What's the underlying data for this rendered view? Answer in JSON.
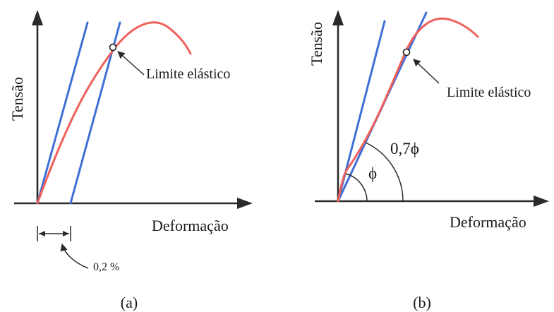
{
  "panel_a": {
    "caption": "(a)",
    "y_axis_label": "Tensão",
    "x_axis_label": "Deformação",
    "point_label": "Limite elástico",
    "offset_label": "0,2 %"
  },
  "panel_b": {
    "caption": "(b)",
    "y_axis_label": "Tensão",
    "x_axis_label": "Deformação",
    "point_label": "Limite elástico",
    "angle_small_label": "ϕ",
    "angle_large_label": "0,7ϕ"
  },
  "colors": {
    "tangent_lines": "#3f6fd6",
    "curve": "#f0605a",
    "axes": "#2a2a2a"
  }
}
